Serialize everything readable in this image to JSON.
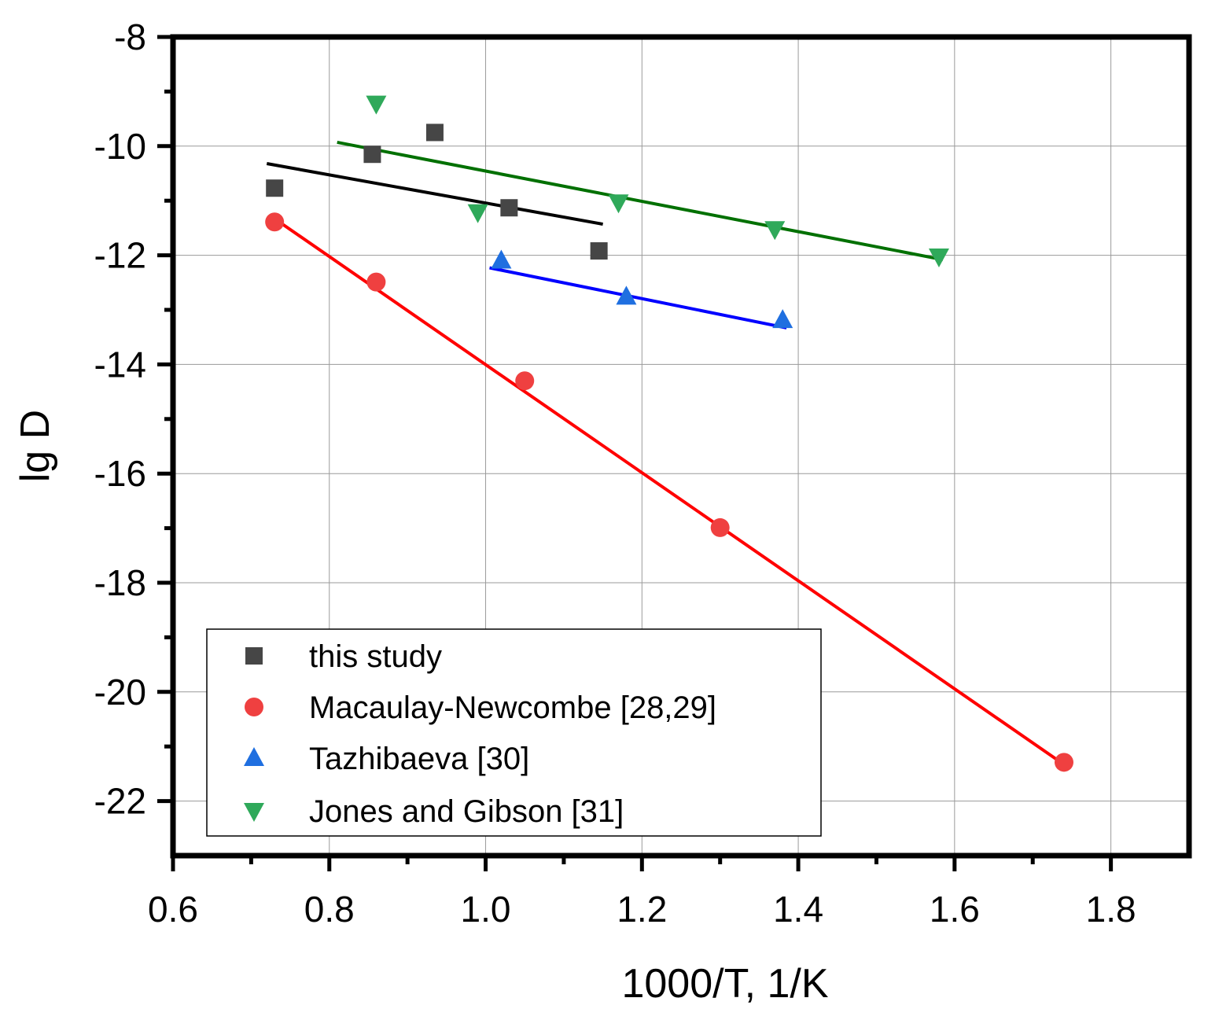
{
  "chart_data": {
    "type": "scatter",
    "title": "",
    "xlabel": "1000/T, 1/K",
    "ylabel": "lg D",
    "xlim": [
      0.6,
      1.9
    ],
    "ylim": [
      -23,
      -8
    ],
    "x_ticks": [
      0.6,
      0.8,
      1.0,
      1.2,
      1.4,
      1.6,
      1.8
    ],
    "x_tick_labels": [
      "0.6",
      "0.8",
      "1.0",
      "1.2",
      "1.4",
      "1.6",
      "1.8"
    ],
    "y_ticks": [
      -8,
      -10,
      -12,
      -14,
      -16,
      -18,
      -20,
      -22
    ],
    "y_tick_labels": [
      "-8",
      "-10",
      "-12",
      "-14",
      "-16",
      "-18",
      "-20",
      "-22"
    ],
    "grid": true,
    "legend_position": "bottom-left",
    "series": [
      {
        "name": "this study",
        "marker": "square",
        "color": "#464646",
        "x": [
          0.73,
          0.855,
          0.935,
          1.03,
          1.145
        ],
        "y": [
          -10.77,
          -10.15,
          -9.75,
          -11.13,
          -11.92
        ],
        "fit_color": "#000000",
        "fit": {
          "x": [
            0.72,
            1.15
          ],
          "y": [
            -10.32,
            -11.43
          ]
        }
      },
      {
        "name": "Macaulay-Newcombe [28,29]",
        "marker": "circle",
        "color": "#ef4040",
        "x": [
          0.73,
          0.86,
          1.05,
          1.3,
          1.74
        ],
        "y": [
          -11.39,
          -12.49,
          -14.3,
          -16.99,
          -21.29
        ],
        "fit_color": "#ff0000",
        "fit": {
          "x": [
            0.73,
            1.74
          ],
          "y": [
            -11.33,
            -21.33
          ]
        }
      },
      {
        "name": "Tazhibaeva [30]",
        "marker": "triangle-up",
        "color": "#1f6fe0",
        "x": [
          1.02,
          1.18,
          1.38
        ],
        "y": [
          -12.1,
          -12.76,
          -13.19
        ],
        "fit_color": "#0000ff",
        "fit": {
          "x": [
            1.005,
            1.385
          ],
          "y": [
            -12.23,
            -13.33
          ]
        }
      },
      {
        "name": "Jones and Gibson [31]",
        "marker": "triangle-down",
        "color": "#2fa95a",
        "x": [
          0.86,
          0.99,
          1.17,
          1.37,
          1.58
        ],
        "y": [
          -9.22,
          -11.21,
          -11.03,
          -11.52,
          -12.02
        ],
        "fit_color": "#007000",
        "fit": {
          "x": [
            0.81,
            1.585
          ],
          "y": [
            -9.93,
            -12.08
          ]
        }
      }
    ]
  }
}
